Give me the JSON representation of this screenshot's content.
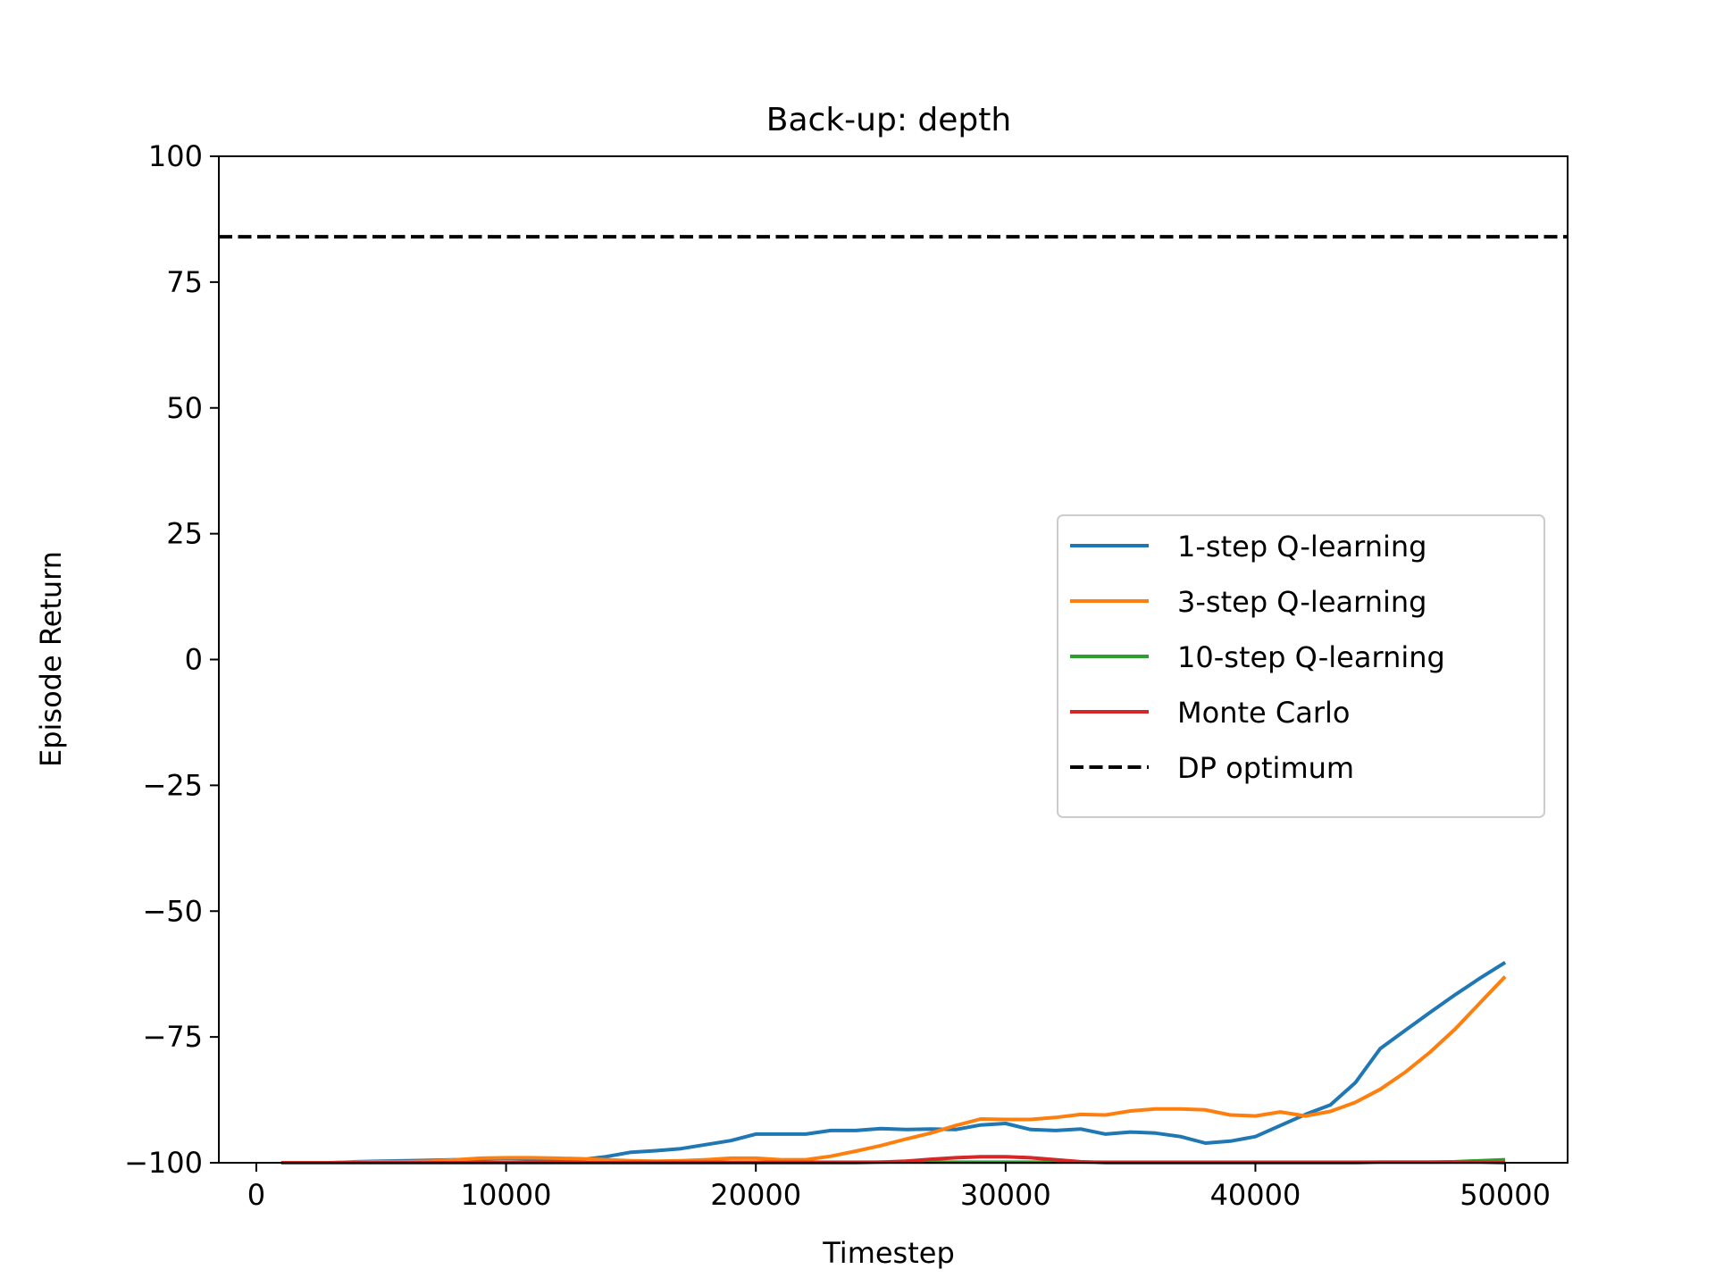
{
  "chart_data": {
    "type": "line",
    "title": "Back-up: depth",
    "xlabel": "Timestep",
    "ylabel": "Episode Return",
    "xlim": [
      -1500,
      52500
    ],
    "ylim": [
      -100,
      100
    ],
    "xticks": [
      0,
      10000,
      20000,
      30000,
      40000,
      50000
    ],
    "yticks": [
      -100,
      -75,
      -50,
      -25,
      0,
      25,
      50,
      75,
      100
    ],
    "xtick_labels": [
      "0",
      "10000",
      "20000",
      "30000",
      "40000",
      "50000"
    ],
    "ytick_labels": [
      "−100",
      "−75",
      "−50",
      "−25",
      "0",
      "25",
      "50",
      "75",
      "100"
    ],
    "grid": false,
    "legend_position": "center-right",
    "x": [
      1000,
      2000,
      3000,
      4000,
      5000,
      6000,
      7000,
      8000,
      9000,
      10000,
      11000,
      12000,
      13000,
      14000,
      15000,
      16000,
      17000,
      18000,
      19000,
      20000,
      21000,
      22000,
      23000,
      24000,
      25000,
      26000,
      27000,
      28000,
      29000,
      30000,
      31000,
      32000,
      33000,
      34000,
      35000,
      36000,
      37000,
      38000,
      39000,
      40000,
      41000,
      42000,
      43000,
      44000,
      45000,
      46000,
      47000,
      48000,
      49000,
      50000
    ],
    "series": [
      {
        "name": "1-step Q-learning",
        "color": "#1f77b4",
        "dashed": false,
        "values": [
          -100,
          -100,
          -100,
          -99.8,
          -99.7,
          -99.6,
          -99.5,
          -99.4,
          -99.3,
          -99.2,
          -99.3,
          -99.3,
          -99.4,
          -98.8,
          -97.9,
          -97.6,
          -97.2,
          -96.4,
          -95.6,
          -94.3,
          -94.3,
          -94.3,
          -93.6,
          -93.6,
          -93.2,
          -93.4,
          -93.3,
          -93.4,
          -92.5,
          -92.2,
          -93.4,
          -93.6,
          -93.3,
          -94.3,
          -93.9,
          -94.1,
          -94.8,
          -96.1,
          -95.7,
          -94.8,
          -92.6,
          -90.4,
          -88.5,
          -84.1,
          -77.3,
          -73.7,
          -70.1,
          -66.6,
          -63.3,
          -60.2
        ]
      },
      {
        "name": "3-step Q-learning",
        "color": "#ff7f0e",
        "dashed": false,
        "values": [
          -100,
          -100,
          -100,
          -99.9,
          -99.8,
          -99.8,
          -99.7,
          -99.4,
          -99.1,
          -99.0,
          -99.0,
          -99.1,
          -99.2,
          -99.4,
          -99.6,
          -99.7,
          -99.6,
          -99.4,
          -99.1,
          -99.1,
          -99.4,
          -99.4,
          -98.7,
          -97.7,
          -96.6,
          -95.3,
          -94.1,
          -92.6,
          -91.3,
          -91.4,
          -91.4,
          -91.0,
          -90.4,
          -90.5,
          -89.7,
          -89.3,
          -89.3,
          -89.5,
          -90.5,
          -90.7,
          -89.9,
          -90.7,
          -89.8,
          -88.0,
          -85.4,
          -82.0,
          -78.0,
          -73.4,
          -68.2,
          -63.0
        ]
      },
      {
        "name": "10-step Q-learning",
        "color": "#2ca02c",
        "dashed": false,
        "values": [
          -100,
          -100,
          -100,
          -100,
          -100,
          -100,
          -100,
          -100,
          -100,
          -100,
          -100,
          -100,
          -100,
          -100,
          -99.9,
          -99.9,
          -99.9,
          -99.9,
          -99.9,
          -99.9,
          -99.9,
          -99.9,
          -99.9,
          -99.9,
          -99.9,
          -99.9,
          -99.9,
          -99.9,
          -99.9,
          -99.9,
          -99.9,
          -99.9,
          -99.9,
          -99.9,
          -99.9,
          -99.9,
          -99.9,
          -99.9,
          -99.9,
          -99.9,
          -99.9,
          -99.9,
          -99.9,
          -99.9,
          -99.9,
          -99.9,
          -99.9,
          -99.8,
          -99.6,
          -99.4
        ]
      },
      {
        "name": "Monte Carlo",
        "color": "#d62728",
        "dashed": false,
        "values": [
          -100,
          -100,
          -100,
          -100,
          -100,
          -100,
          -100,
          -100,
          -100,
          -100,
          -100,
          -100,
          -100,
          -100,
          -100,
          -100,
          -100,
          -100,
          -100,
          -100,
          -100,
          -100,
          -100,
          -100,
          -99.9,
          -99.7,
          -99.3,
          -99.0,
          -98.8,
          -98.8,
          -99.0,
          -99.4,
          -99.8,
          -100,
          -100,
          -100,
          -100,
          -100,
          -100,
          -100,
          -100,
          -100,
          -100,
          -100,
          -99.9,
          -99.9,
          -99.9,
          -99.9,
          -99.9,
          -100
        ]
      }
    ],
    "reference_lines": [
      {
        "name": "DP optimum",
        "y": 84,
        "color": "#000000",
        "dashed": true
      }
    ]
  }
}
